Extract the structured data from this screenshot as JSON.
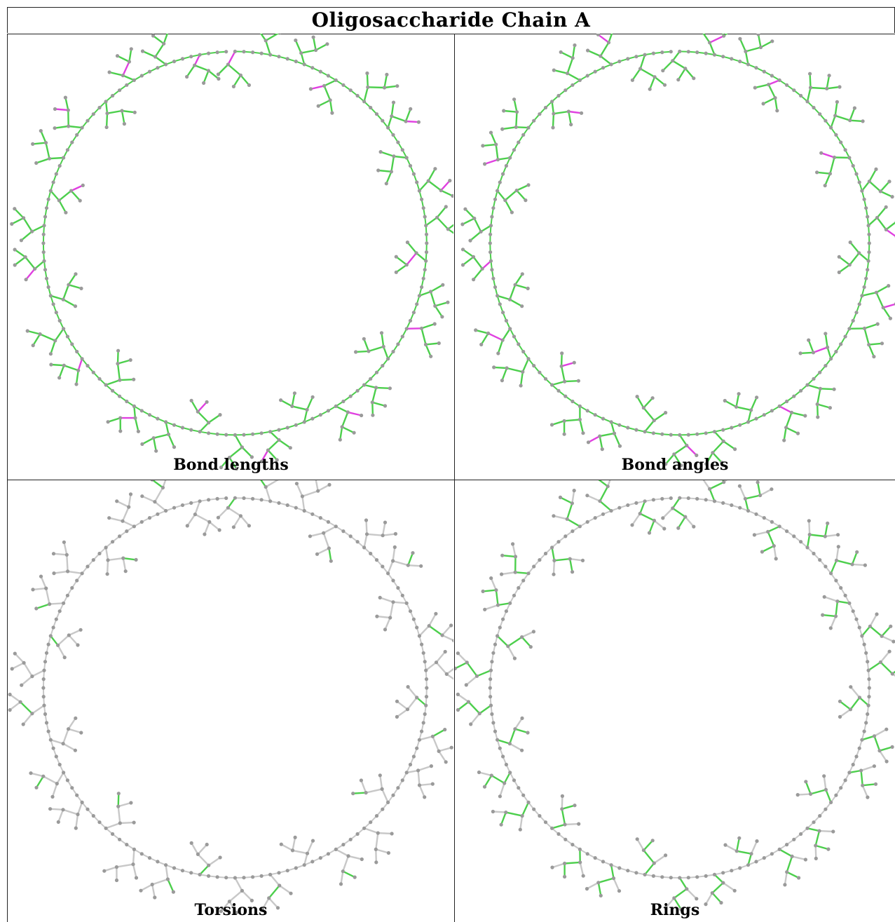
{
  "title": "Oligosaccharide Chain A",
  "panels": [
    {
      "caption": "Bond lengths",
      "highlight_bonds": "lengths"
    },
    {
      "caption": "Bond angles",
      "highlight_bonds": "angles"
    },
    {
      "caption": "Torsions",
      "highlight_bonds": "torsions"
    },
    {
      "caption": "Rings",
      "highlight_bonds": "rings"
    }
  ],
  "colors": {
    "atom": "#9a9a9a",
    "bond_grey": "#c8c8c8",
    "bond_green": "#4ccf4c",
    "bond_magenta": "#e040e0",
    "border": "#222222"
  }
}
